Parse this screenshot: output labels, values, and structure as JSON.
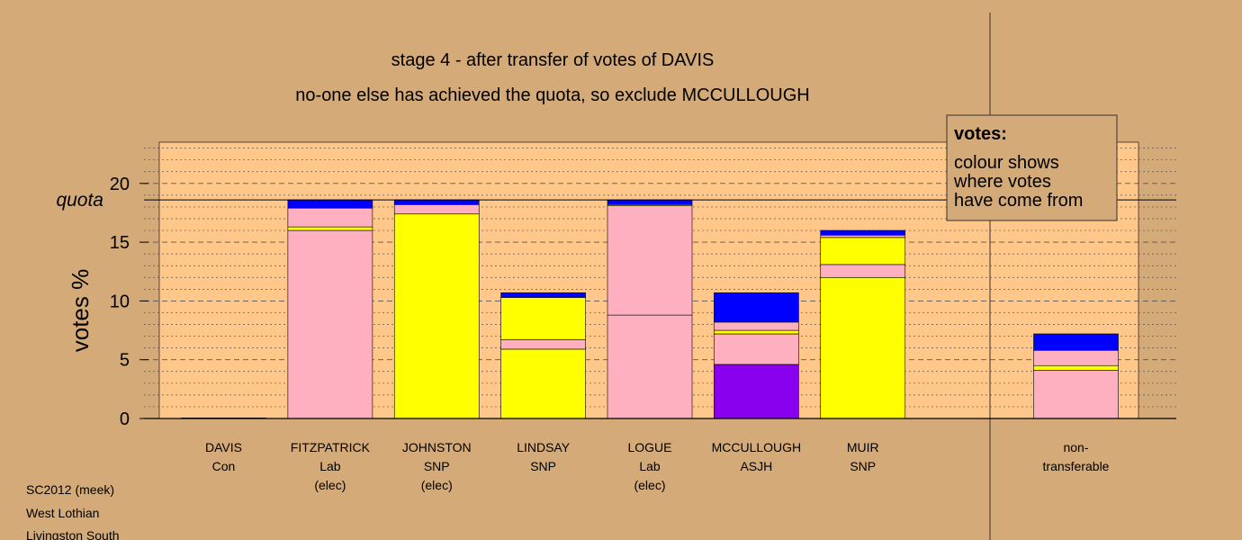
{
  "colors": {
    "background": "#d4aa78",
    "plot_background": "#ffc88a",
    "Lab": "#ffb0c0",
    "SNP": "#ffff00",
    "Con": "#0000ff",
    "ASJH": "#8800ee"
  },
  "chart_data": {
    "type": "bar",
    "stacked": true,
    "title": "stage 4 - after transfer of votes of DAVIS",
    "subtitle": "no-one else has achieved the quota, so exclude MCCULLOUGH",
    "ylabel": "votes %",
    "ylim": [
      0,
      23.5
    ],
    "yticks": [
      0,
      5,
      10,
      15,
      20
    ],
    "quota": {
      "label": "quota",
      "value": 18.6
    },
    "grid": "dashed every 5, dotted every 1",
    "legend": {
      "position": "top-right",
      "title": "votes:",
      "lines": [
        "colour shows",
        "where votes",
        "have come from"
      ]
    },
    "categories": [
      {
        "name": "DAVIS",
        "party": "Con",
        "note": "",
        "segments": [
          {
            "from": "Con",
            "value": 0.05
          }
        ]
      },
      {
        "name": "FITZPATRICK",
        "party": "Lab",
        "note": "(elec)",
        "segments": [
          {
            "from": "Lab",
            "value": 16.0
          },
          {
            "from": "SNP",
            "value": 0.3
          },
          {
            "from": "Lab",
            "value": 1.6
          },
          {
            "from": "Con",
            "value": 0.7
          }
        ]
      },
      {
        "name": "JOHNSTON",
        "party": "SNP",
        "note": "(elec)",
        "segments": [
          {
            "from": "SNP",
            "value": 17.4
          },
          {
            "from": "Lab",
            "value": 0.8
          },
          {
            "from": "Con",
            "value": 0.4
          }
        ]
      },
      {
        "name": "LINDSAY",
        "party": "SNP",
        "note": "",
        "segments": [
          {
            "from": "SNP",
            "value": 5.9
          },
          {
            "from": "Lab",
            "value": 0.8
          },
          {
            "from": "SNP",
            "value": 3.6
          },
          {
            "from": "Con",
            "value": 0.4
          }
        ]
      },
      {
        "name": "LOGUE",
        "party": "Lab",
        "note": "(elec)",
        "segments": [
          {
            "from": "Lab",
            "value": 8.8
          },
          {
            "from": "Lab",
            "value": 9.3
          },
          {
            "from": "SNP",
            "value": 0.1
          },
          {
            "from": "Con",
            "value": 0.4
          }
        ]
      },
      {
        "name": "MCCULLOUGH",
        "party": "ASJH",
        "note": "",
        "segments": [
          {
            "from": "ASJH",
            "value": 4.6
          },
          {
            "from": "Lab",
            "value": 2.6
          },
          {
            "from": "SNP",
            "value": 0.3
          },
          {
            "from": "Lab",
            "value": 0.7
          },
          {
            "from": "Con",
            "value": 2.5
          }
        ]
      },
      {
        "name": "MUIR",
        "party": "SNP",
        "note": "",
        "segments": [
          {
            "from": "SNP",
            "value": 12.0
          },
          {
            "from": "Lab",
            "value": 1.1
          },
          {
            "from": "SNP",
            "value": 2.3
          },
          {
            "from": "Lab",
            "value": 0.2
          },
          {
            "from": "Con",
            "value": 0.4
          }
        ]
      },
      {
        "name": "",
        "party": "",
        "note": "",
        "segments": []
      },
      {
        "name": "non-",
        "party": "transferable",
        "note": "",
        "segments": [
          {
            "from": "Lab",
            "value": 4.1
          },
          {
            "from": "SNP",
            "value": 0.4
          },
          {
            "from": "Lab",
            "value": 1.3
          },
          {
            "from": "Con",
            "value": 1.4
          }
        ]
      }
    ]
  },
  "footer": [
    "SC2012 (meek)",
    "West Lothian",
    "Livingston South"
  ]
}
